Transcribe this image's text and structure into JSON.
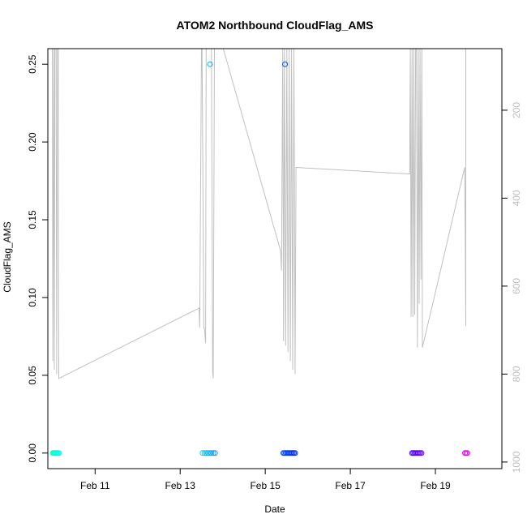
{
  "chart_data": {
    "type": "scatter",
    "title": "ATOM2 Northbound CloudFlag_AMS",
    "xlabel": "Date",
    "ylabel": "CloudFlag_AMS",
    "xlim": [
      "2017-02-09T21:20",
      "2017-02-20T13:30"
    ],
    "ylim": [
      -0.01,
      0.26
    ],
    "x_ticks": [
      {
        "label": "Feb 11",
        "value": "2017-02-11T00:00"
      },
      {
        "label": "Feb 13",
        "value": "2017-02-13T00:00"
      },
      {
        "label": "Feb 15",
        "value": "2017-02-15T00:00"
      },
      {
        "label": "Feb 17",
        "value": "2017-02-17T00:00"
      },
      {
        "label": "Feb 19",
        "value": "2017-02-19T00:00"
      }
    ],
    "y_ticks": [
      "0.00",
      "0.05",
      "0.10",
      "0.15",
      "0.20",
      "0.25"
    ],
    "y_tick_values": [
      0.0,
      0.05,
      0.1,
      0.15,
      0.2,
      0.25
    ],
    "y2_ticks": [
      "200",
      "400",
      "600",
      "800",
      "1000"
    ],
    "y2_tick_values": [
      200,
      400,
      600,
      800,
      1000
    ],
    "y2_lim": [
      1015,
      60
    ],
    "y2_color": "#bdbdbd",
    "points": [
      {
        "x": "2017-02-10T00:10",
        "y": 0.0,
        "color": "#00ffb0"
      },
      {
        "x": "2017-02-10T00:40",
        "y": 0.0,
        "color": "#00ffc0"
      },
      {
        "x": "2017-02-10T01:10",
        "y": 0.0,
        "color": "#00ffd0"
      },
      {
        "x": "2017-02-10T01:40",
        "y": 0.0,
        "color": "#00ffd8"
      },
      {
        "x": "2017-02-10T02:10",
        "y": 0.0,
        "color": "#00ffe0"
      },
      {
        "x": "2017-02-10T02:40",
        "y": 0.0,
        "color": "#00ffe8"
      },
      {
        "x": "2017-02-10T03:10",
        "y": 0.0,
        "color": "#00fff0"
      },
      {
        "x": "2017-02-10T03:40",
        "y": 0.0,
        "color": "#00fff8"
      },
      {
        "x": "2017-02-13T12:40",
        "y": 0.0,
        "color": "#00d4ff"
      },
      {
        "x": "2017-02-13T13:40",
        "y": 0.0,
        "color": "#00ccff"
      },
      {
        "x": "2017-02-13T14:40",
        "y": 0.0,
        "color": "#00c4ff"
      },
      {
        "x": "2017-02-13T15:40",
        "y": 0.0,
        "color": "#00bcff"
      },
      {
        "x": "2017-02-13T16:40",
        "y": 0.0,
        "color": "#00b4ff"
      },
      {
        "x": "2017-02-13T17:40",
        "y": 0.0,
        "color": "#00acff"
      },
      {
        "x": "2017-02-13T18:40",
        "y": 0.0,
        "color": "#00a4ff"
      },
      {
        "x": "2017-02-13T19:40",
        "y": 0.0,
        "color": "#009cff"
      },
      {
        "x": "2017-02-13T16:50",
        "y": 0.25,
        "color": "#00aaff"
      },
      {
        "x": "2017-02-15T10:10",
        "y": 0.0,
        "color": "#0050ff"
      },
      {
        "x": "2017-02-15T10:50",
        "y": 0.0,
        "color": "#004cff"
      },
      {
        "x": "2017-02-15T11:30",
        "y": 0.0,
        "color": "#0048ff"
      },
      {
        "x": "2017-02-15T12:10",
        "y": 0.0,
        "color": "#0044ff"
      },
      {
        "x": "2017-02-15T12:50",
        "y": 0.0,
        "color": "#0040ff"
      },
      {
        "x": "2017-02-15T13:30",
        "y": 0.0,
        "color": "#003cff"
      },
      {
        "x": "2017-02-15T14:10",
        "y": 0.0,
        "color": "#0038ff"
      },
      {
        "x": "2017-02-15T14:50",
        "y": 0.0,
        "color": "#0034ff"
      },
      {
        "x": "2017-02-15T15:30",
        "y": 0.0,
        "color": "#0030ff"
      },
      {
        "x": "2017-02-15T16:10",
        "y": 0.0,
        "color": "#002cff"
      },
      {
        "x": "2017-02-15T16:50",
        "y": 0.0,
        "color": "#0028ff"
      },
      {
        "x": "2017-02-15T11:10",
        "y": 0.25,
        "color": "#0048ff"
      },
      {
        "x": "2017-02-18T10:50",
        "y": 0.0,
        "color": "#4b00ff"
      },
      {
        "x": "2017-02-18T11:30",
        "y": 0.0,
        "color": "#5000ff"
      },
      {
        "x": "2017-02-18T12:10",
        "y": 0.0,
        "color": "#5500ff"
      },
      {
        "x": "2017-02-18T12:50",
        "y": 0.0,
        "color": "#5a00ff"
      },
      {
        "x": "2017-02-18T13:30",
        "y": 0.0,
        "color": "#5f00ff"
      },
      {
        "x": "2017-02-18T14:10",
        "y": 0.0,
        "color": "#6400ff"
      },
      {
        "x": "2017-02-18T14:50",
        "y": 0.0,
        "color": "#6900ff"
      },
      {
        "x": "2017-02-18T15:30",
        "y": 0.0,
        "color": "#6e00ff"
      },
      {
        "x": "2017-02-18T16:10",
        "y": 0.0,
        "color": "#7300ff"
      },
      {
        "x": "2017-02-19T16:40",
        "y": 0.0,
        "color": "#e000ff"
      },
      {
        "x": "2017-02-19T17:20",
        "y": 0.0,
        "color": "#e800f0"
      },
      {
        "x": "2017-02-19T18:00",
        "y": 0.0,
        "color": "#f000e0"
      }
    ],
    "pressure_line": {
      "color": "#c0c0c0",
      "x": [
        "2017-02-09T23:50",
        "2017-02-10T00:10",
        "2017-02-10T00:40",
        "2017-02-10T01:00",
        "2017-02-10T01:20",
        "2017-02-10T02:00",
        "2017-02-10T02:20",
        "2017-02-10T02:50",
        "2017-02-10T03:10",
        "2017-02-10T03:30",
        "2017-02-13T10:40",
        "2017-02-13T11:00",
        "2017-02-13T12:00",
        "2017-02-13T12:20",
        "2017-02-13T13:20",
        "2017-02-13T13:40",
        "2017-02-13T14:20",
        "2017-02-13T14:40",
        "2017-02-13T15:20",
        "2017-02-13T17:40",
        "2017-02-13T18:20",
        "2017-02-13T18:40",
        "2017-02-13T19:20",
        "2017-02-14T00:20",
        "2017-02-15T08:40",
        "2017-02-15T09:10",
        "2017-02-15T09:50",
        "2017-02-15T10:20",
        "2017-02-15T10:50",
        "2017-02-15T11:30",
        "2017-02-15T12:10",
        "2017-02-15T12:50",
        "2017-02-15T13:30",
        "2017-02-15T14:10",
        "2017-02-15T14:50",
        "2017-02-15T15:30",
        "2017-02-15T16:10",
        "2017-02-15T16:50",
        "2017-02-15T17:20",
        "2017-02-18T09:30",
        "2017-02-18T09:50",
        "2017-02-18T10:20",
        "2017-02-18T10:50",
        "2017-02-18T11:20",
        "2017-02-18T11:50",
        "2017-02-18T12:20",
        "2017-02-18T12:50",
        "2017-02-18T13:20",
        "2017-02-18T13:50",
        "2017-02-18T14:20",
        "2017-02-18T14:50",
        "2017-02-18T15:20",
        "2017-02-18T15:50",
        "2017-02-18T16:20",
        "2017-02-18T16:40",
        "2017-02-19T16:30",
        "2017-02-19T16:50",
        "2017-02-19T17:10"
      ],
      "y": [
        60,
        770,
        60,
        790,
        60,
        60,
        800,
        60,
        60,
        810,
        650,
        695,
        60,
        60,
        695,
        695,
        730,
        60,
        60,
        60,
        795,
        810,
        60,
        60,
        520,
        565,
        60,
        725,
        60,
        735,
        60,
        750,
        60,
        770,
        60,
        790,
        60,
        800,
        330,
        345,
        60,
        670,
        60,
        670,
        60,
        665,
        60,
        60,
        740,
        60,
        640,
        60,
        585,
        60,
        740,
        330,
        470,
        690
      ],
      "y_end": 60
    }
  }
}
